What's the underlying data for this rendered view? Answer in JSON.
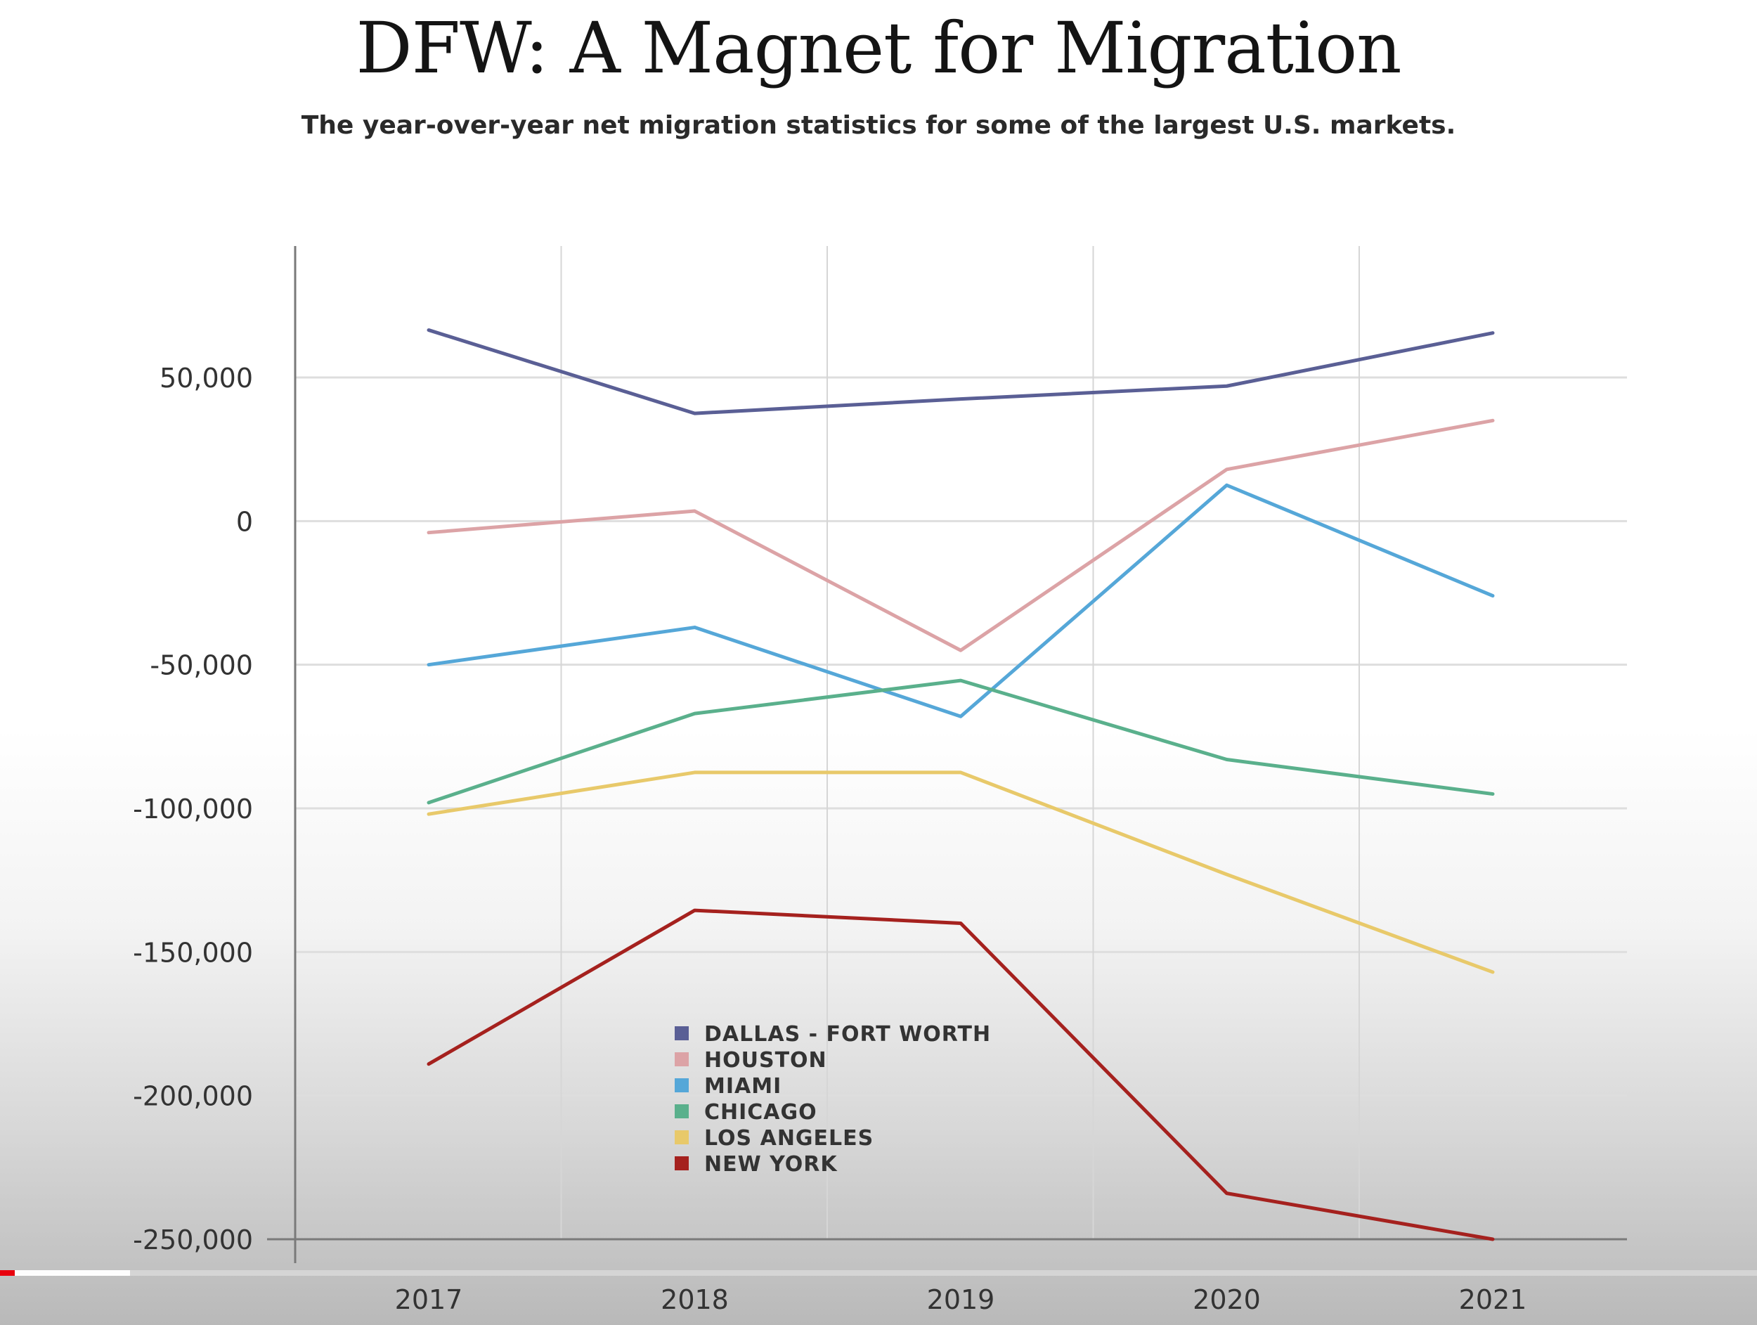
{
  "chart_data": {
    "type": "line",
    "title": "DFW: A Magnet for Migration",
    "subtitle": "The year-over-year net migration statistics for some of the largest U.S. markets.",
    "x": [
      "2017",
      "2018",
      "2019",
      "2020",
      "2021"
    ],
    "ylim": [
      -250000,
      95000
    ],
    "yticks": [
      50000,
      0,
      -50000,
      -100000,
      -150000,
      -200000,
      -250000
    ],
    "ytick_labels": [
      "50,000",
      "0",
      "-50,000",
      "-100,000",
      "-150,000",
      "-200,000",
      "-250,000"
    ],
    "grid": true,
    "legend_position": "bottom-center",
    "series": [
      {
        "name": "DALLAS - FORT WORTH",
        "color": "#5a5f95",
        "values": [
          66500,
          37500,
          42500,
          47000,
          65500
        ]
      },
      {
        "name": "HOUSTON",
        "color": "#dca3a6",
        "values": [
          -4000,
          3500,
          -45000,
          18000,
          35000
        ]
      },
      {
        "name": "MIAMI",
        "color": "#55a7d8",
        "values": [
          -50000,
          -37000,
          -68000,
          12500,
          -26000
        ]
      },
      {
        "name": "CHICAGO",
        "color": "#5ab08c",
        "values": [
          -98000,
          -67000,
          -55500,
          -83000,
          -95000
        ]
      },
      {
        "name": "LOS ANGELES",
        "color": "#e8c96a",
        "values": [
          -102000,
          -87500,
          -87500,
          -123000,
          -157000
        ]
      },
      {
        "name": "NEW YORK",
        "color": "#a5211e",
        "values": [
          -189000,
          -135500,
          -140000,
          -234000,
          -250000
        ]
      }
    ]
  },
  "video": {
    "played_fraction": 0.0085,
    "buffered_fraction": 0.074,
    "played_color": "#e8000d"
  }
}
